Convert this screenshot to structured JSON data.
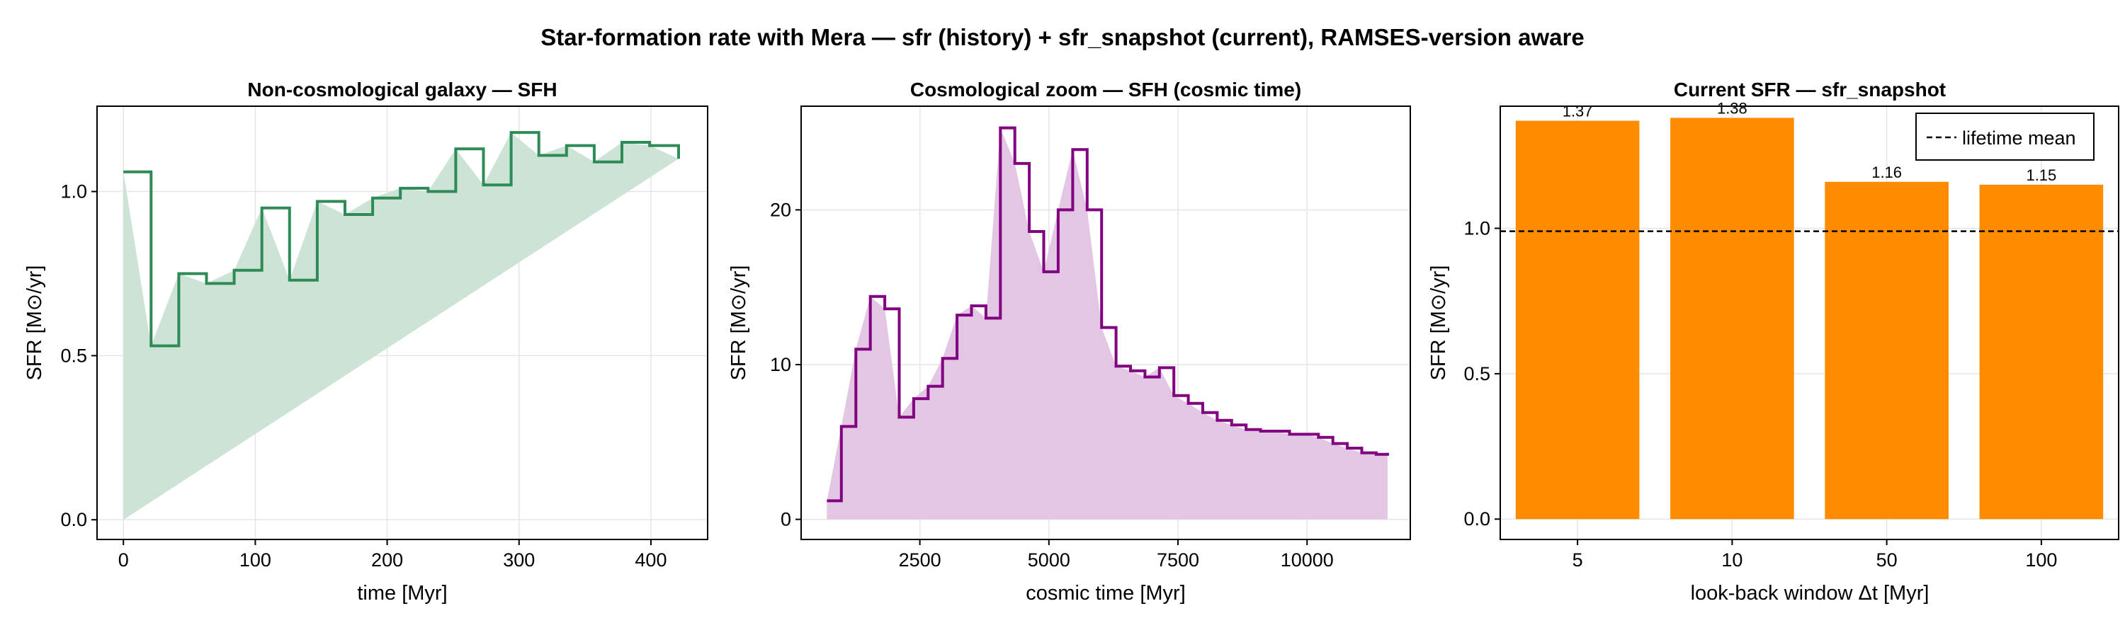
{
  "figure": {
    "title": "Star-formation rate with Mera — sfr (history) + sfr_snapshot (current), RAMSES-version aware"
  },
  "colors": {
    "green": "#2e8b57",
    "green_fill": "#cce3d6",
    "purple": "#800080",
    "purple_fill": "#e3c6e3",
    "orange": "#ff8c00",
    "grid": "#e5e5e5"
  },
  "chart_data": [
    {
      "type": "line",
      "style": "step-with-filled-area",
      "title": "Non-cosmological galaxy — SFH",
      "xlabel": "time [Myr]",
      "ylabel": "SFR [M⊙/yr]",
      "xlim": [
        -20,
        443
      ],
      "ylim": [
        -0.06,
        1.26
      ],
      "xticks": [
        0,
        100,
        200,
        300,
        400
      ],
      "yticks": [
        0.0,
        0.5,
        1.0
      ],
      "ytick_labels": [
        "0.0",
        "0.5",
        "1.0"
      ],
      "grid": true,
      "series": [
        {
          "color": "green",
          "edges": [
            0,
            21,
            42,
            63,
            84,
            105,
            126,
            147,
            168,
            189,
            210,
            231,
            252,
            273,
            294,
            315,
            336,
            357,
            378,
            399,
            421
          ],
          "values": [
            1.06,
            0.53,
            0.75,
            0.72,
            0.76,
            0.95,
            0.73,
            0.97,
            0.93,
            0.98,
            1.01,
            1.0,
            1.13,
            1.02,
            1.18,
            1.11,
            1.14,
            1.09,
            1.15,
            1.14,
            1.1
          ],
          "last_value": 1.19
        }
      ]
    },
    {
      "type": "line",
      "style": "step-with-filled-area",
      "title": "Cosmological zoom — SFH (cosmic time)",
      "xlabel": "cosmic time [Myr]",
      "ylabel": "SFR [M⊙/yr]",
      "xlim": [
        200,
        12000
      ],
      "ylim": [
        -1.3,
        26.7
      ],
      "xticks": [
        2500,
        5000,
        7500,
        10000
      ],
      "yticks": [
        0,
        10,
        20
      ],
      "ytick_labels": [
        "0",
        "10",
        "20"
      ],
      "grid": true,
      "series": [
        {
          "color": "purple",
          "edges": [
            700,
            980,
            1260,
            1540,
            1820,
            2100,
            2380,
            2660,
            2940,
            3220,
            3500,
            3780,
            4060,
            4340,
            4620,
            4900,
            5180,
            5460,
            5740,
            6020,
            6300,
            6580,
            6860,
            7140,
            7420,
            7700,
            7980,
            8260,
            8540,
            8820,
            9100,
            9380,
            9660,
            9940,
            10220,
            10500,
            10780,
            11060,
            11340,
            11560
          ],
          "values": [
            1.2,
            6.0,
            11.0,
            14.4,
            13.6,
            6.6,
            7.8,
            8.6,
            10.4,
            13.2,
            13.8,
            13.0,
            25.3,
            23.0,
            18.6,
            16.0,
            20.0,
            23.9,
            20.0,
            12.4,
            9.9,
            9.6,
            9.2,
            9.8,
            8.0,
            7.5,
            6.9,
            6.4,
            6.1,
            5.8,
            5.7,
            5.7,
            5.5,
            5.5,
            5.3,
            4.9,
            4.6,
            4.3,
            4.2
          ],
          "last_value": 4.3
        }
      ]
    },
    {
      "type": "bar",
      "title": "Current SFR — sfr_snapshot",
      "xlabel": "look-back window Δt [Myr]",
      "ylabel": "SFR [M⊙/yr]",
      "categories": [
        "5",
        "10",
        "50",
        "100"
      ],
      "values": [
        1.37,
        1.38,
        1.16,
        1.15
      ],
      "data_labels": [
        "1.37",
        "1.38",
        "1.16",
        "1.15"
      ],
      "color": "orange",
      "ylim": [
        -0.07,
        1.42
      ],
      "yticks": [
        0.0,
        0.5,
        1.0
      ],
      "ytick_labels": [
        "0.0",
        "0.5",
        "1.0"
      ],
      "grid": true,
      "reference_line": {
        "value": 0.99,
        "label": "lifetime mean",
        "style": "dashed"
      },
      "legend": {
        "position": "top-right",
        "entries": [
          "lifetime mean"
        ]
      }
    }
  ]
}
